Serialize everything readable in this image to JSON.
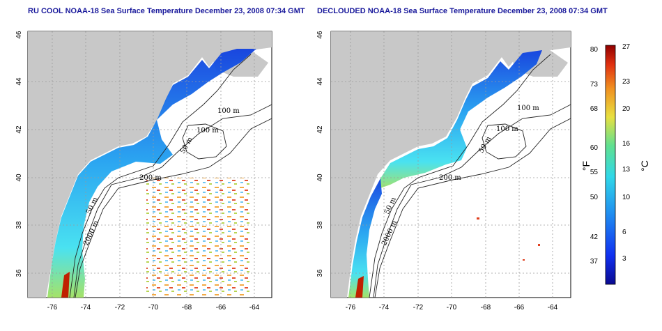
{
  "panels": [
    {
      "title": "RU COOL NOAA-18 Sea Surface Temperature December 23, 2008 07:34 GMT"
    },
    {
      "title": "DECLOUDED NOAA-18 Sea Surface Temperature December 23, 2008 07:34 GMT"
    }
  ],
  "axes": {
    "lon_ticks": [
      "-76",
      "-74",
      "-72",
      "-70",
      "-68",
      "-66",
      "-64"
    ],
    "lat_ticks": [
      "46",
      "44",
      "42",
      "40",
      "38",
      "36"
    ]
  },
  "contours": [
    "100 m",
    "100 m",
    "50 m",
    "200 m",
    "50 m",
    "2000 m"
  ],
  "colorbar": {
    "f_unit": "°F",
    "c_unit": "°C",
    "f_ticks": [
      "80",
      "73",
      "68",
      "60",
      "55",
      "50",
      "42",
      "37"
    ],
    "c_ticks": [
      "27",
      "23",
      "20",
      "16",
      "13",
      "10",
      "6",
      "3"
    ]
  },
  "colors": {
    "title": "#1a1a9c",
    "land": "#c8c8c8",
    "grid": "#9a9a9a",
    "cold": "#1030d0",
    "warm": "#c00000"
  }
}
